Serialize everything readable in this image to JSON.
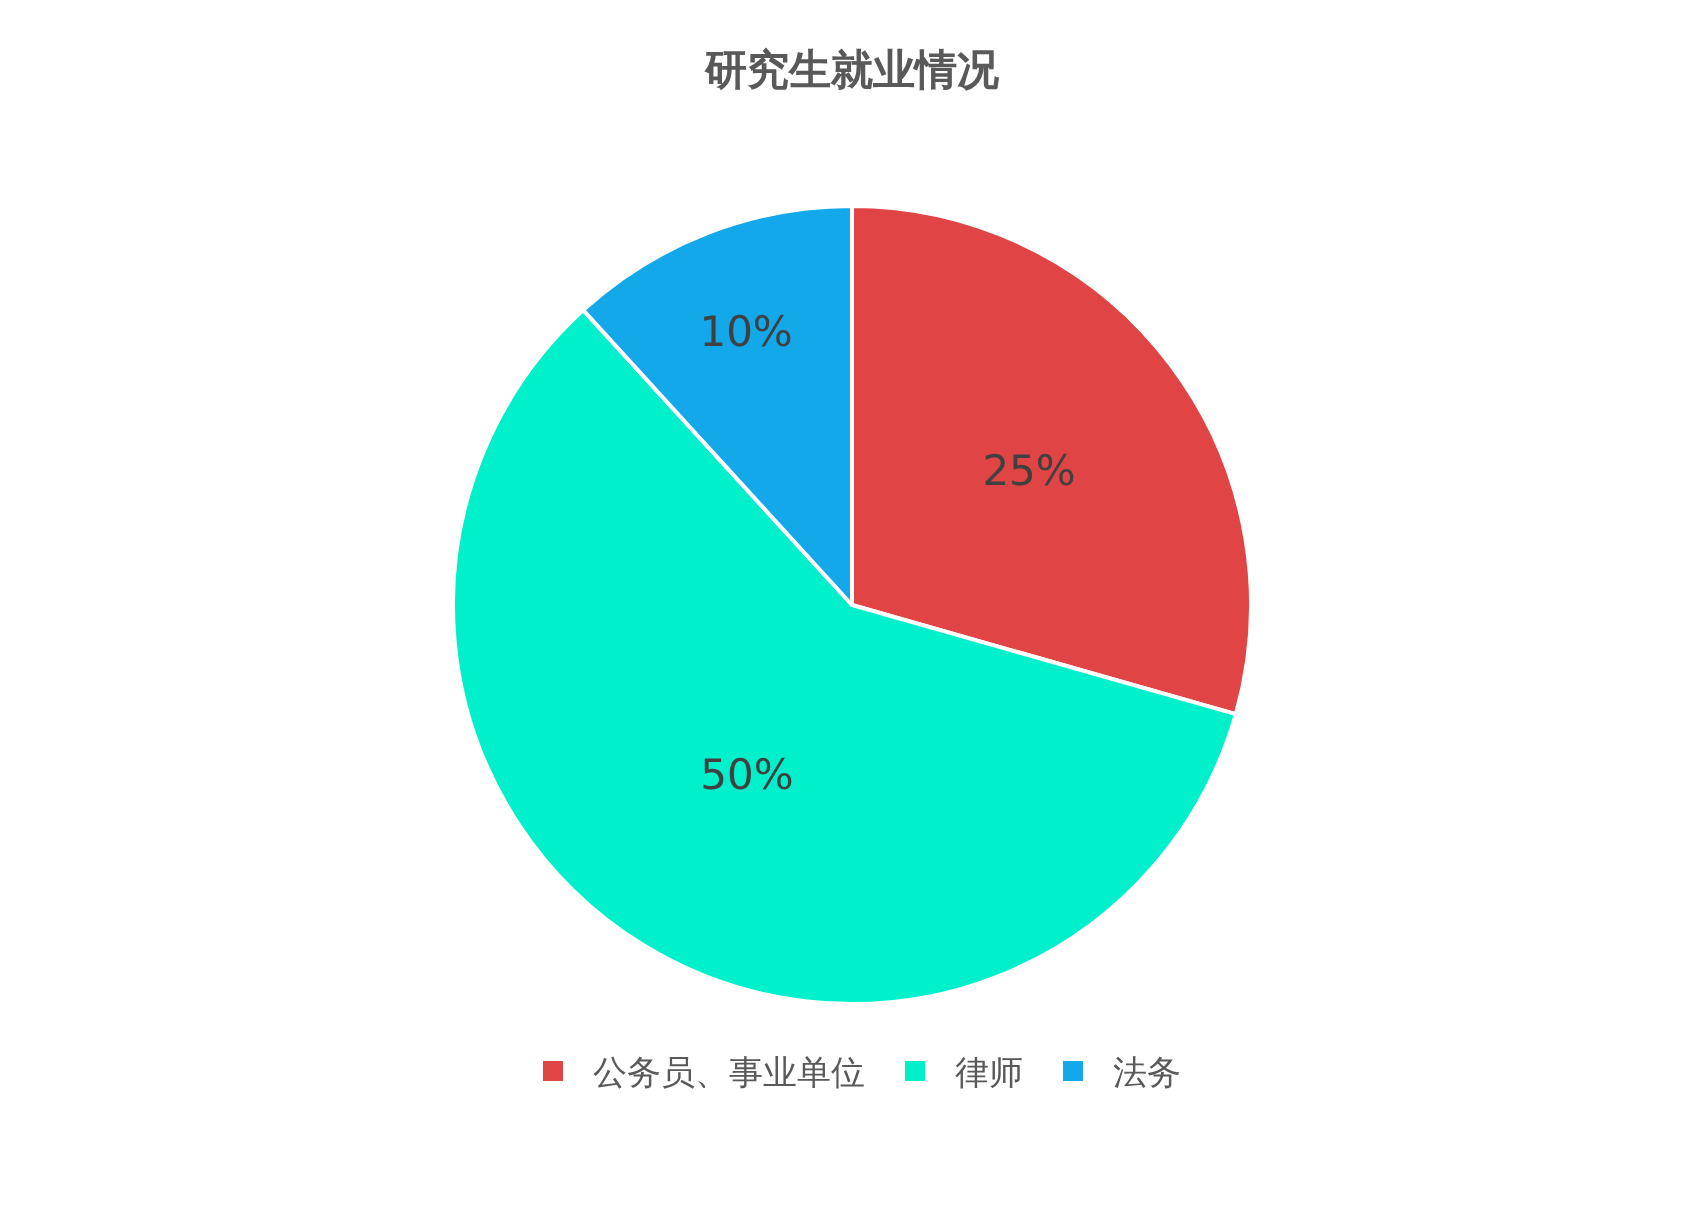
{
  "chart_data": {
    "type": "pie",
    "title": "研究生就业情况",
    "categories": [
      "公务员、事业单位",
      "律师",
      "法务"
    ],
    "values": [
      25,
      50,
      10
    ],
    "value_labels": [
      "25%",
      "50%",
      "10%"
    ],
    "colors": [
      "#e04444",
      "#00f0cc",
      "#12a8ea"
    ],
    "legend": "bottom"
  }
}
